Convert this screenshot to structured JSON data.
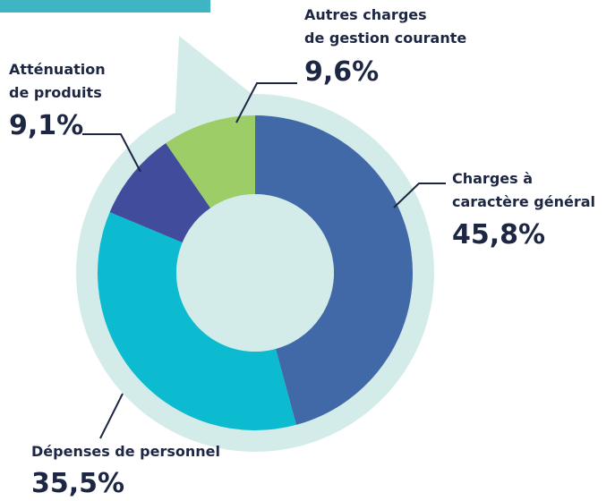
{
  "chart_data": {
    "type": "donut",
    "categories": [
      "Charges à\ncaractère général",
      "Dépenses de personnel",
      "Atténuation\nde produits",
      "Autres charges\nde gestion courante"
    ],
    "values": [
      45.8,
      35.5,
      9.1,
      9.6
    ],
    "value_labels": [
      "45,8%",
      "35,5%",
      "9,1%",
      "9,6%"
    ],
    "colors": [
      "#4169a8",
      "#0cbbd0",
      "#424c9c",
      "#9ccd66"
    ]
  }
}
